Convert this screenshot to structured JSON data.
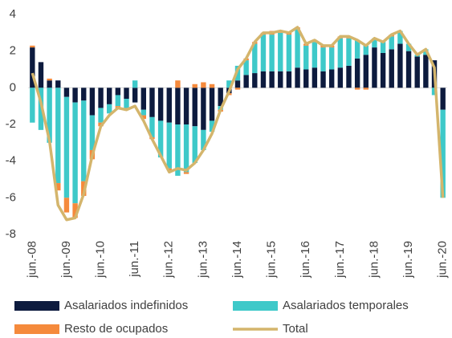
{
  "chart_data": {
    "type": "stacked-bar-line",
    "categories": [
      "jun.-08",
      null,
      null,
      null,
      "jun.-09",
      null,
      null,
      null,
      "jun.-10",
      null,
      null,
      null,
      "jun.-11",
      null,
      null,
      null,
      "jun.-12",
      null,
      null,
      null,
      "jun.-13",
      null,
      null,
      null,
      "jun.-14",
      null,
      null,
      null,
      "jun.-15",
      null,
      null,
      null,
      "jun.-16",
      null,
      null,
      null,
      "jun.-17",
      null,
      null,
      null,
      "jun.-18",
      null,
      null,
      null,
      "jun.-19",
      null,
      null,
      null,
      "jun.-20"
    ],
    "series": [
      {
        "name": "Asalariados indefinidos",
        "color": "#0d1b3e",
        "values": [
          2.2,
          1.4,
          0.4,
          0.4,
          -0.5,
          -0.8,
          -0.7,
          -1.5,
          -1.1,
          -0.9,
          -0.4,
          -0.6,
          -0.8,
          -1.2,
          -1.6,
          -1.8,
          -1.9,
          -2.0,
          -2.0,
          -2.1,
          -2.3,
          -1.8,
          -1.0,
          -0.3,
          0.4,
          0.7,
          0.8,
          0.9,
          0.9,
          0.9,
          0.9,
          1.1,
          1.0,
          1.1,
          0.9,
          1.0,
          1.1,
          1.2,
          1.6,
          1.8,
          2.2,
          1.9,
          2.1,
          2.4,
          2.0,
          1.7,
          1.8,
          1.5,
          -1.2
        ]
      },
      {
        "name": "Asalariados temporales",
        "color": "#3ec9c9",
        "values": [
          -1.9,
          -2.3,
          -3.0,
          -5.2,
          -5.5,
          -5.5,
          -4.4,
          -1.9,
          -0.8,
          -0.5,
          -0.6,
          -0.5,
          0.4,
          -0.3,
          -1.1,
          -2.0,
          -2.5,
          -2.8,
          -2.6,
          -2.0,
          -1.1,
          -0.6,
          -0.2,
          0.4,
          0.8,
          0.8,
          1.6,
          2.0,
          2.0,
          2.1,
          2.0,
          2.1,
          1.3,
          1.4,
          1.3,
          1.2,
          1.6,
          1.5,
          1.0,
          0.5,
          0.5,
          0.6,
          0.7,
          0.7,
          0.4,
          0.1,
          0.3,
          -0.4,
          -4.8
        ]
      },
      {
        "name": "Resto de ocupados",
        "color": "#f58a3c",
        "values": [
          0.1,
          0,
          0.1,
          -0.4,
          -0.8,
          -0.8,
          -0.8,
          -0.5,
          -0.2,
          0,
          -0.1,
          -0.1,
          0,
          -0.2,
          -0.1,
          0,
          -0.1,
          0.4,
          -0.1,
          0.2,
          0.3,
          0.2,
          -0.1,
          -0.1,
          -0.1,
          0.1,
          0.1,
          0.1,
          0.2,
          0.1,
          0.1,
          0.1,
          0.1,
          0.1,
          0.1,
          0.1,
          0.1,
          0.1,
          -0.1,
          -0.1,
          0,
          0,
          0.1,
          0,
          0,
          0,
          0,
          0,
          0
        ]
      },
      {
        "name": "Total",
        "color": "#d4b56c",
        "kind": "line",
        "values": [
          0.8,
          -0.8,
          -2.9,
          -6.4,
          -7.2,
          -7.1,
          -5.8,
          -3.7,
          -2.1,
          -1.5,
          -1.1,
          -1.2,
          -1.0,
          -1.8,
          -2.8,
          -3.7,
          -4.6,
          -4.4,
          -4.5,
          -4.1,
          -3.4,
          -2.5,
          -1.2,
          -0.2,
          1.0,
          1.6,
          2.5,
          3.0,
          3.0,
          3.1,
          3.0,
          3.3,
          2.4,
          2.6,
          2.3,
          2.3,
          2.8,
          2.8,
          2.6,
          2.3,
          2.7,
          2.5,
          2.9,
          3.1,
          2.4,
          1.8,
          2.1,
          1.1,
          -6.0
        ]
      }
    ],
    "ylim": [
      -8,
      4
    ],
    "yticks": [
      -8,
      -6,
      -4,
      -2,
      0,
      2,
      4
    ],
    "grid": false
  }
}
